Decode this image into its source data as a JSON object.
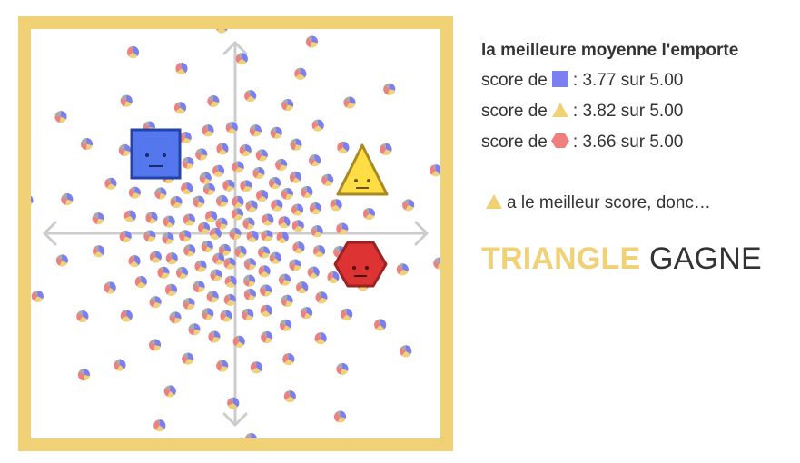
{
  "panel": {
    "heading": "la meilleure moyenne l'emporte",
    "score_prefix": "score de",
    "scores": [
      {
        "shape": "square",
        "separator": ":",
        "value_text": "3.77 sur 5.00",
        "color": "#7b7ff0"
      },
      {
        "shape": "triangle",
        "separator": ":",
        "value_text": "3.82 sur 5.00",
        "color": "#f0d176"
      },
      {
        "shape": "hexagon",
        "separator": ":",
        "value_text": "3.66 sur 5.00",
        "color": "#f08080"
      }
    ],
    "best_text": "a le meilleur score, donc…",
    "winner_name": "TRIANGLE",
    "winner_verb": "GAGNE"
  },
  "colors": {
    "frame": "#f0d176",
    "axes": "#cccccc",
    "square": "#5577ee",
    "square_border": "#2244aa",
    "triangle": "#ffdd44",
    "triangle_border": "#aa8822",
    "hexagon": "#dd3333",
    "hexagon_border": "#992222",
    "voter_gray": "#aaaaaa",
    "voter_blue": "#7b7ff0",
    "voter_yellow": "#f0d176",
    "voter_red": "#f08080"
  },
  "icons": {
    "square_candidate": "face-square-icon",
    "triangle_candidate": "face-triangle-icon",
    "hexagon_candidate": "face-hexagon-icon",
    "voter": "pie-voter-icon",
    "axis": "arrow-cross-icon"
  }
}
